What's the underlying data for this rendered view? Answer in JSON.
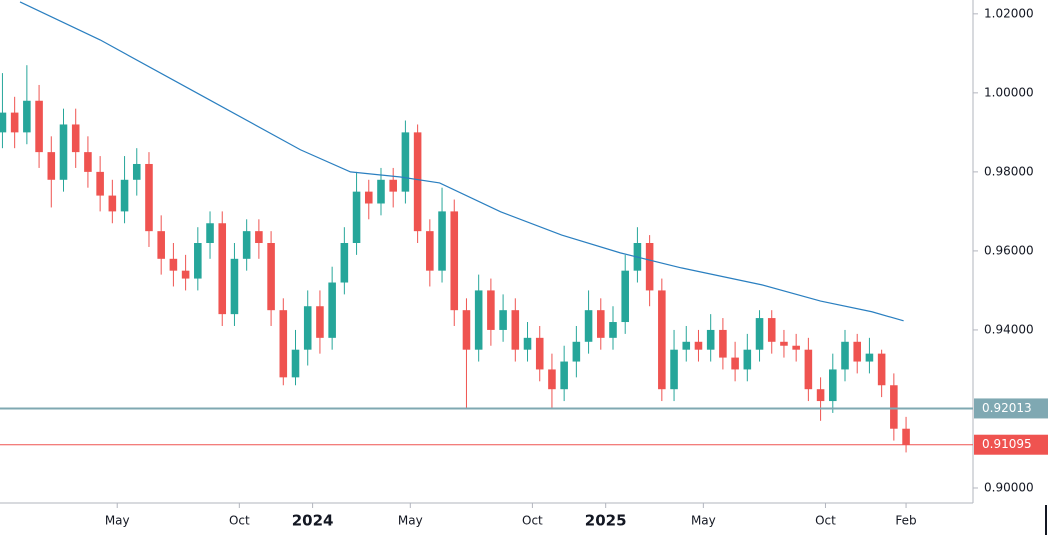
{
  "chart_data": {
    "type": "candlestick",
    "xlim": [
      -0.8,
      39
    ],
    "ylim": [
      0.8962,
      1.0235
    ],
    "xticks": [
      {
        "value": 4,
        "label": "May"
      },
      {
        "value": 9,
        "label": "Oct"
      },
      {
        "value": 12,
        "label": "2024",
        "major": true
      },
      {
        "value": 16,
        "label": "May"
      },
      {
        "value": 21,
        "label": "Oct"
      },
      {
        "value": 24,
        "label": "2025",
        "major": true
      },
      {
        "value": 28,
        "label": "May"
      },
      {
        "value": 33,
        "label": "Oct"
      },
      {
        "value": 36.3,
        "label": "Feb"
      }
    ],
    "yticks": [
      {
        "value": 1.02,
        "label": "1.02000"
      },
      {
        "value": 1.0,
        "label": "1.00000"
      },
      {
        "value": 0.98,
        "label": "0.98000"
      },
      {
        "value": 0.96,
        "label": "0.96000"
      },
      {
        "value": 0.94,
        "label": "0.94000"
      },
      {
        "value": 0.9,
        "label": "0.90000"
      }
    ],
    "grid": false,
    "up_color": "#26a69a",
    "down_color": "#ef5350",
    "x": [
      -0.7,
      -0.2,
      0.3,
      0.8,
      1.3,
      1.8,
      2.3,
      2.8,
      3.3,
      3.8,
      4.3,
      4.8,
      5.3,
      5.8,
      6.3,
      6.8,
      7.3,
      7.8,
      8.3,
      8.8,
      9.3,
      9.8,
      10.3,
      10.8,
      11.3,
      11.8,
      12.3,
      12.8,
      13.3,
      13.8,
      14.3,
      14.8,
      15.3,
      15.8,
      16.3,
      16.8,
      17.3,
      17.8,
      18.3,
      18.8,
      19.3,
      19.8,
      20.3,
      20.8,
      21.3,
      21.8,
      22.3,
      22.8,
      23.3,
      23.8,
      24.3,
      24.8,
      25.3,
      25.8,
      26.3,
      26.8,
      27.3,
      27.8,
      28.3,
      28.8,
      29.3,
      29.8,
      30.3,
      30.8,
      31.3,
      31.8,
      32.3,
      32.8,
      33.3,
      33.8,
      34.3,
      34.8,
      35.3,
      35.8,
      36.3
    ],
    "open": [
      0.99,
      0.995,
      0.99,
      0.998,
      0.985,
      0.978,
      0.992,
      0.985,
      0.98,
      0.974,
      0.97,
      0.978,
      0.982,
      0.965,
      0.958,
      0.955,
      0.953,
      0.962,
      0.967,
      0.944,
      0.958,
      0.965,
      0.962,
      0.945,
      0.928,
      0.935,
      0.946,
      0.938,
      0.952,
      0.962,
      0.975,
      0.972,
      0.978,
      0.975,
      0.99,
      0.965,
      0.955,
      0.97,
      0.945,
      0.935,
      0.95,
      0.94,
      0.945,
      0.935,
      0.938,
      0.93,
      0.925,
      0.932,
      0.937,
      0.945,
      0.938,
      0.942,
      0.955,
      0.962,
      0.95,
      0.925,
      0.935,
      0.937,
      0.935,
      0.94,
      0.933,
      0.93,
      0.935,
      0.943,
      0.937,
      0.936,
      0.935,
      0.925,
      0.922,
      0.93,
      0.937,
      0.932,
      0.934,
      0.926,
      0.915
    ],
    "high": [
      1.005,
      0.999,
      1.007,
      1.002,
      0.989,
      0.996,
      0.996,
      0.989,
      0.984,
      0.978,
      0.984,
      0.986,
      0.985,
      0.969,
      0.962,
      0.959,
      0.966,
      0.97,
      0.97,
      0.962,
      0.968,
      0.968,
      0.965,
      0.948,
      0.94,
      0.95,
      0.95,
      0.956,
      0.966,
      0.98,
      0.978,
      0.981,
      0.981,
      0.993,
      0.992,
      0.968,
      0.976,
      0.973,
      0.948,
      0.954,
      0.953,
      0.949,
      0.948,
      0.942,
      0.941,
      0.934,
      0.936,
      0.941,
      0.95,
      0.948,
      0.946,
      0.959,
      0.966,
      0.964,
      0.953,
      0.94,
      0.941,
      0.94,
      0.944,
      0.943,
      0.937,
      0.939,
      0.945,
      0.945,
      0.94,
      0.939,
      0.938,
      0.928,
      0.934,
      0.94,
      0.939,
      0.938,
      0.935,
      0.929,
      0.918
    ],
    "low": [
      0.986,
      0.986,
      0.987,
      0.981,
      0.971,
      0.975,
      0.981,
      0.976,
      0.97,
      0.967,
      0.967,
      0.974,
      0.961,
      0.954,
      0.951,
      0.95,
      0.95,
      0.958,
      0.941,
      0.941,
      0.955,
      0.958,
      0.941,
      0.926,
      0.926,
      0.931,
      0.934,
      0.935,
      0.949,
      0.959,
      0.968,
      0.969,
      0.971,
      0.972,
      0.962,
      0.951,
      0.952,
      0.941,
      0.92,
      0.932,
      0.936,
      0.937,
      0.932,
      0.932,
      0.927,
      0.92,
      0.922,
      0.928,
      0.934,
      0.935,
      0.935,
      0.939,
      0.952,
      0.946,
      0.922,
      0.922,
      0.932,
      0.932,
      0.932,
      0.93,
      0.927,
      0.927,
      0.932,
      0.934,
      0.933,
      0.932,
      0.922,
      0.917,
      0.919,
      0.927,
      0.929,
      0.929,
      0.923,
      0.912,
      0.909
    ],
    "close": [
      0.995,
      0.99,
      0.998,
      0.985,
      0.978,
      0.992,
      0.985,
      0.98,
      0.974,
      0.97,
      0.978,
      0.982,
      0.965,
      0.958,
      0.955,
      0.953,
      0.962,
      0.967,
      0.944,
      0.958,
      0.965,
      0.962,
      0.945,
      0.928,
      0.935,
      0.946,
      0.938,
      0.952,
      0.962,
      0.975,
      0.972,
      0.978,
      0.975,
      0.99,
      0.965,
      0.955,
      0.97,
      0.945,
      0.935,
      0.95,
      0.94,
      0.945,
      0.935,
      0.938,
      0.93,
      0.925,
      0.932,
      0.937,
      0.945,
      0.938,
      0.942,
      0.955,
      0.962,
      0.95,
      0.925,
      0.935,
      0.937,
      0.935,
      0.94,
      0.933,
      0.93,
      0.935,
      0.943,
      0.937,
      0.936,
      0.935,
      0.925,
      0.922,
      0.93,
      0.937,
      0.932,
      0.934,
      0.926,
      0.915,
      0.91095
    ],
    "moving_average": {
      "color": "#2a7fc0",
      "x": [
        0.02,
        3.3,
        7.4,
        11.5,
        13.55,
        15.6,
        17.2,
        19.7,
        22.2,
        24.6,
        27.1,
        30.4,
        32.8,
        34.9,
        36.2
      ],
      "values": [
        1.023,
        1.0134,
        0.9995,
        0.9856,
        0.98,
        0.9787,
        0.9772,
        0.9699,
        0.964,
        0.9595,
        0.9557,
        0.9514,
        0.9473,
        0.9446,
        0.9423
      ]
    },
    "price_lines": [
      {
        "value": 0.92013,
        "label": "0.92013",
        "color": "#7fa8b2"
      },
      {
        "value": 0.91095,
        "label": "0.91095",
        "color": "#ef5350"
      }
    ]
  }
}
